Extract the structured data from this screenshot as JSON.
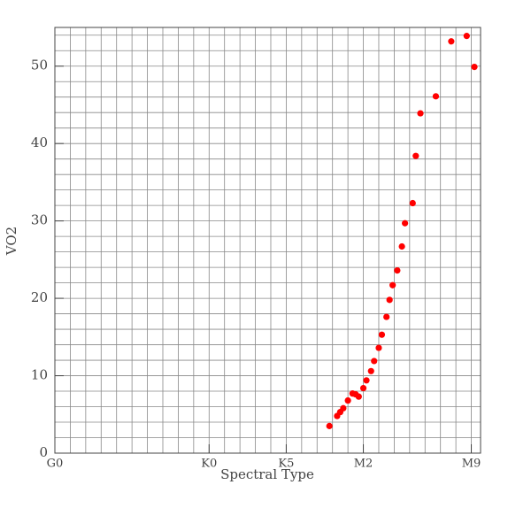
{
  "chart_data": {
    "type": "scatter",
    "x_label": "Spectral Type",
    "y_label": "VO2",
    "series": [
      {
        "color": "#ff0000",
        "x": [
          17.8,
          18.3,
          18.5,
          18.7,
          19.0,
          19.3,
          19.5,
          19.7,
          20.0,
          20.2,
          20.5,
          20.7,
          21.0,
          21.2,
          21.5,
          21.7,
          21.9,
          22.2,
          22.5,
          22.7,
          23.2,
          23.4,
          23.7,
          24.7,
          25.7,
          26.7,
          27.2
        ],
        "values": [
          3.5,
          4.8,
          5.3,
          5.8,
          6.8,
          7.7,
          7.6,
          7.3,
          8.4,
          9.4,
          10.6,
          11.9,
          13.6,
          15.3,
          17.6,
          19.8,
          21.7,
          23.6,
          26.7,
          29.7,
          32.3,
          38.4,
          43.9,
          46.1,
          53.2,
          53.9,
          49.9
        ]
      }
    ],
    "xlim": [
      0,
      27.6
    ],
    "ylim": [
      0,
      55
    ],
    "xticks": [
      {
        "value": 0,
        "label": "G0"
      },
      {
        "value": 10,
        "label": "K0"
      },
      {
        "value": 15,
        "label": "K5"
      },
      {
        "value": 20,
        "label": "M2"
      },
      {
        "value": 27,
        "label": "M9"
      }
    ],
    "yticks": [
      0,
      10,
      20,
      30,
      40,
      50
    ],
    "grid": true,
    "x_grid_step": 1,
    "y_grid_step": 2
  }
}
